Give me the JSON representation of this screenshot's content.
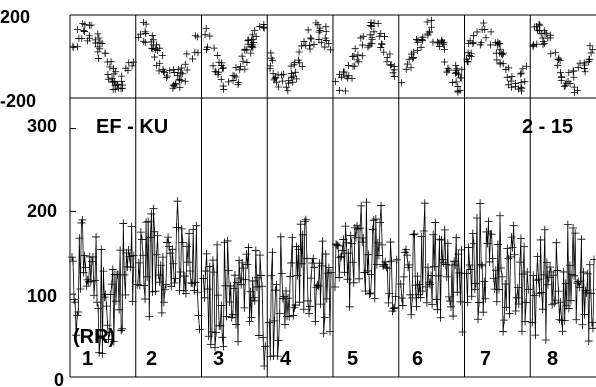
{
  "chart_data": [
    {
      "id": "phase-strip",
      "type": "scatter",
      "marker": "plus",
      "ylim": [
        -200,
        200
      ],
      "yticks": [
        200,
        -200
      ],
      "ytick_labels": [
        "200",
        "-200"
      ],
      "panels": 8,
      "grid": false,
      "series_description": "Phase values per record, eight side-by-side panels; dense scatter of points between roughly -180 and 180."
    },
    {
      "id": "amplitude-panels",
      "type": "line",
      "marker": "plus",
      "title": "EF - KU",
      "title_right": "2 - 15",
      "ylabel_inset": "(RR)",
      "ylim": [
        0,
        320
      ],
      "yticks": [
        0,
        100,
        200,
        300
      ],
      "ytick_labels": [
        "0",
        "100",
        "200",
        "300"
      ],
      "panel_labels": [
        "1",
        "2",
        "3",
        "4",
        "5",
        "6",
        "7",
        "8"
      ],
      "grid": false,
      "panel_profiles": [
        [
          120,
          115,
          110,
          105,
          95,
          90,
          100,
          115,
          130,
          140
        ],
        [
          130,
          135,
          150,
          155,
          150,
          140,
          135,
          130,
          120,
          110
        ],
        [
          85,
          90,
          95,
          100,
          105,
          110,
          110,
          100,
          90,
          80
        ],
        [
          90,
          95,
          105,
          110,
          115,
          120,
          125,
          120,
          110,
          105
        ],
        [
          115,
          125,
          135,
          140,
          145,
          150,
          140,
          130,
          120,
          110
        ],
        [
          115,
          120,
          125,
          130,
          140,
          145,
          135,
          125,
          115,
          110
        ],
        [
          110,
          120,
          135,
          150,
          145,
          130,
          120,
          110,
          105,
          100
        ],
        [
          105,
          110,
          120,
          125,
          120,
          115,
          110,
          105,
          100,
          95
        ]
      ],
      "spread": 60
    }
  ]
}
